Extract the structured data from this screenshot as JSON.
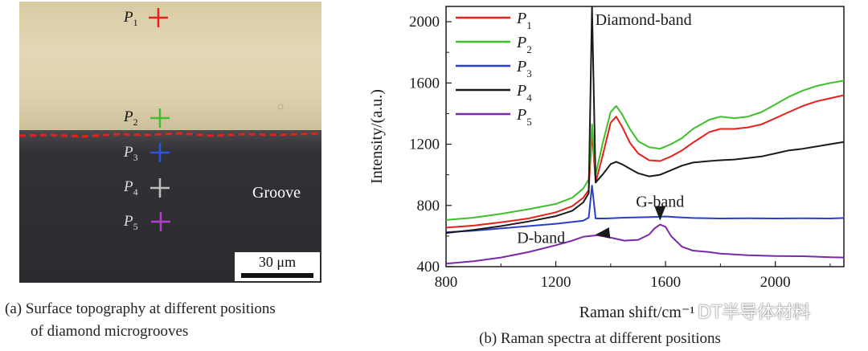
{
  "figure_a": {
    "labels": [
      {
        "id": "P1",
        "base": "P",
        "sub": "1",
        "color": "#e8201a"
      },
      {
        "id": "P2",
        "base": "P",
        "sub": "2",
        "color": "#3fbf2b"
      },
      {
        "id": "P3",
        "base": "P",
        "sub": "3",
        "color": "#2a55e0"
      },
      {
        "id": "P4",
        "base": "P",
        "sub": "4",
        "color": "#bfbfbf"
      },
      {
        "id": "P5",
        "base": "P",
        "sub": "5",
        "color": "#b23fd0"
      }
    ],
    "groove_label": "Groove",
    "scale_bar": "30 μm",
    "interface_line_color": "#e8201a",
    "caption_line1": "(a) Surface topography at different positions",
    "caption_line2": "of diamond microgrooves"
  },
  "figure_b_caption": "(b) Raman spectra at different positions",
  "watermark": "DT半导体材料",
  "chart_data": {
    "type": "line",
    "xlabel": "Raman shift/cm⁻¹",
    "ylabel": "Intensity/(a.u.)",
    "xlim": [
      800,
      2250
    ],
    "ylim": [
      400,
      2100
    ],
    "xticks": [
      800,
      1200,
      1600,
      2000
    ],
    "yticks": [
      400,
      800,
      1200,
      1600,
      2000
    ],
    "grid": false,
    "legend_position": "top-left",
    "annotations": [
      {
        "text": "Diamond-band",
        "x": 1332,
        "y": 2000
      },
      {
        "text": "G-band",
        "x": 1580,
        "y": 790,
        "arrow_to": [
          1580,
          680
        ]
      },
      {
        "text": "D-band",
        "x": 1240,
        "y": 585,
        "arrow_to": [
          1350,
          610
        ]
      }
    ],
    "series": [
      {
        "name": "P1",
        "sub": "1",
        "color": "#e8201a",
        "x": [
          800,
          900,
          1000,
          1100,
          1200,
          1260,
          1300,
          1320,
          1332,
          1345,
          1370,
          1400,
          1420,
          1440,
          1470,
          1500,
          1540,
          1580,
          1620,
          1660,
          1700,
          1760,
          1800,
          1850,
          1900,
          1950,
          2000,
          2050,
          2100,
          2150,
          2200,
          2250
        ],
        "y": [
          655,
          668,
          690,
          715,
          755,
          795,
          850,
          900,
          1280,
          950,
          1120,
          1340,
          1380,
          1320,
          1210,
          1140,
          1095,
          1090,
          1120,
          1160,
          1210,
          1280,
          1300,
          1300,
          1310,
          1330,
          1370,
          1410,
          1450,
          1480,
          1500,
          1520
        ]
      },
      {
        "name": "P2",
        "sub": "2",
        "color": "#3fbf2b",
        "x": [
          800,
          900,
          1000,
          1100,
          1200,
          1260,
          1300,
          1320,
          1332,
          1345,
          1370,
          1400,
          1420,
          1440,
          1470,
          1500,
          1540,
          1580,
          1620,
          1660,
          1700,
          1760,
          1800,
          1850,
          1900,
          1950,
          2000,
          2050,
          2100,
          2150,
          2200,
          2250
        ],
        "y": [
          705,
          720,
          745,
          775,
          810,
          850,
          910,
          970,
          1330,
          1000,
          1200,
          1410,
          1450,
          1400,
          1300,
          1220,
          1180,
          1170,
          1200,
          1240,
          1300,
          1360,
          1380,
          1370,
          1380,
          1410,
          1460,
          1510,
          1550,
          1580,
          1600,
          1615
        ]
      },
      {
        "name": "P3",
        "sub": "3",
        "color": "#2a3fc8",
        "x": [
          800,
          900,
          1000,
          1100,
          1200,
          1250,
          1300,
          1320,
          1332,
          1345,
          1380,
          1450,
          1500,
          1560,
          1600,
          1650,
          1700,
          1800,
          1900,
          2000,
          2100,
          2200,
          2250
        ],
        "y": [
          625,
          635,
          650,
          665,
          680,
          690,
          700,
          720,
          930,
          715,
          715,
          720,
          722,
          725,
          728,
          722,
          718,
          715,
          716,
          715,
          716,
          715,
          718
        ]
      },
      {
        "name": "P4",
        "sub": "4",
        "color": "#1a1a1a",
        "x": [
          800,
          900,
          1000,
          1100,
          1200,
          1260,
          1300,
          1320,
          1332,
          1345,
          1370,
          1400,
          1420,
          1440,
          1470,
          1500,
          1540,
          1580,
          1620,
          1660,
          1700,
          1760,
          1800,
          1850,
          1900,
          1950,
          2000,
          2050,
          2100,
          2150,
          2200,
          2250
        ],
        "y": [
          620,
          640,
          665,
          695,
          730,
          765,
          820,
          880,
          2100,
          950,
          1000,
          1070,
          1085,
          1070,
          1040,
          1010,
          990,
          1000,
          1030,
          1060,
          1080,
          1090,
          1095,
          1100,
          1110,
          1120,
          1140,
          1160,
          1170,
          1185,
          1200,
          1215
        ]
      },
      {
        "name": "P5",
        "sub": "5",
        "color": "#7a2aa8",
        "x": [
          800,
          900,
          1000,
          1100,
          1200,
          1260,
          1300,
          1350,
          1400,
          1450,
          1500,
          1540,
          1560,
          1580,
          1600,
          1620,
          1660,
          1700,
          1760,
          1800,
          1900,
          2000,
          2100,
          2200,
          2250
        ],
        "y": [
          420,
          435,
          460,
          495,
          540,
          570,
          595,
          605,
          590,
          570,
          575,
          610,
          650,
          675,
          660,
          600,
          530,
          505,
          495,
          485,
          475,
          470,
          468,
          462,
          460
        ]
      }
    ]
  }
}
